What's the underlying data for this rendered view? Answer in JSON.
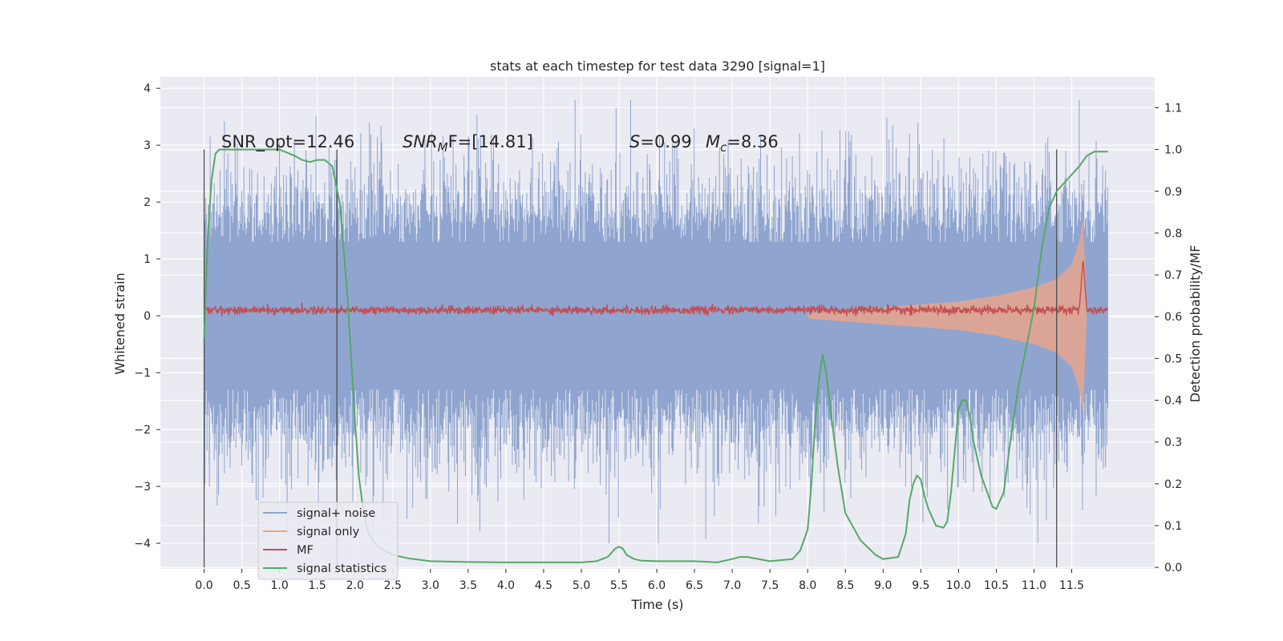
{
  "chart_data": {
    "type": "line",
    "title": "stats at each timestep for test data 3290 [signal=1]",
    "xlabel": "Time (s)",
    "ylabel": "Whitened strain",
    "y2label": "Detection probability/MF",
    "xlim": [
      -0.58,
      12.6
    ],
    "ylim": [
      -4.45,
      4.2
    ],
    "y2lim": [
      -0.0035,
      1.1737
    ],
    "x_ticks": [
      "0.0",
      "0.5",
      "1.0",
      "1.5",
      "2.0",
      "2.5",
      "3.0",
      "3.5",
      "4.0",
      "4.5",
      "5.0",
      "5.5",
      "6.0",
      "6.5",
      "7.0",
      "7.5",
      "8.0",
      "8.5",
      "9.0",
      "9.5",
      "10.0",
      "10.5",
      "11.0",
      "11.5"
    ],
    "y_ticks": [
      "4",
      "3",
      "2",
      "1",
      "0",
      "−1",
      "−2",
      "−3",
      "−4"
    ],
    "y2_ticks": [
      "1.1",
      "1.0",
      "0.9",
      "0.8",
      "0.7",
      "0.6",
      "0.5",
      "0.4",
      "0.3",
      "0.2",
      "0.1",
      "0.0"
    ],
    "grid": true,
    "legend_position": "bottom-left",
    "annotations": {
      "snr_opt": "SNR_opt=12.46",
      "snr_mf_sym": "SNR",
      "snr_mf_sub": "M",
      "snr_mf_rest": "F=[14.81]",
      "s_sym": "S",
      "s_val": "=0.99",
      "mc_sym": "M",
      "mc_sub": "c",
      "mc_val": "=8.36"
    },
    "vertical_markers": [
      0.0,
      1.76,
      11.3
    ],
    "noise": {
      "t_start": 0.0,
      "t_end": 11.98,
      "typical_amplitude": 2.3,
      "max": 3.8,
      "min": -4.0
    },
    "signal_envelope": [
      {
        "t": 8.0,
        "amp": 0.05
      },
      {
        "t": 9.0,
        "amp": 0.15
      },
      {
        "t": 10.0,
        "amp": 0.25
      },
      {
        "t": 10.5,
        "amp": 0.35
      },
      {
        "t": 11.0,
        "amp": 0.5
      },
      {
        "t": 11.3,
        "amp": 0.65
      },
      {
        "t": 11.5,
        "amp": 0.9
      },
      {
        "t": 11.6,
        "amp": 1.3
      },
      {
        "t": 11.65,
        "amp": 1.7
      },
      {
        "t": 11.7,
        "amp": 0.05
      }
    ],
    "mf": {
      "t_start": 0.0,
      "t_end": 11.98,
      "baseline": 0.1,
      "jitter": 0.08,
      "peak_t": 11.65,
      "peak_value": 1.0
    },
    "series": [
      {
        "name": "signal+ noise",
        "color": "#8fa5cf"
      },
      {
        "name": "signal only",
        "color": "#e8a58c"
      },
      {
        "name": "MF",
        "color": "#c44e52"
      },
      {
        "name": "signal statistics",
        "color": "#55a868",
        "x": [
          0.0,
          0.05,
          0.1,
          0.15,
          0.2,
          0.3,
          0.5,
          0.7,
          1.0,
          1.2,
          1.3,
          1.4,
          1.5,
          1.6,
          1.7,
          1.8,
          1.9,
          2.0,
          2.05,
          2.1,
          2.15,
          2.2,
          2.3,
          2.4,
          2.5,
          2.7,
          3.0,
          3.5,
          4.0,
          4.5,
          5.0,
          5.2,
          5.35,
          5.45,
          5.5,
          5.55,
          5.6,
          5.7,
          5.8,
          6.0,
          6.5,
          6.8,
          7.0,
          7.1,
          7.2,
          7.5,
          7.8,
          7.9,
          8.0,
          8.05,
          8.1,
          8.15,
          8.2,
          8.25,
          8.3,
          8.4,
          8.5,
          8.7,
          8.9,
          9.0,
          9.2,
          9.3,
          9.35,
          9.4,
          9.45,
          9.5,
          9.55,
          9.6,
          9.7,
          9.8,
          9.85,
          9.9,
          10.0,
          10.05,
          10.1,
          10.15,
          10.2,
          10.3,
          10.4,
          10.45,
          10.5,
          10.6,
          10.7,
          10.8,
          11.0,
          11.1,
          11.2,
          11.3,
          11.4,
          11.5,
          11.6,
          11.7,
          11.8,
          11.9,
          11.98
        ],
        "y": [
          0.55,
          0.8,
          0.93,
          0.99,
          1.0,
          1.0,
          1.0,
          1.0,
          1.0,
          0.985,
          0.975,
          0.97,
          0.975,
          0.975,
          0.96,
          0.87,
          0.65,
          0.35,
          0.22,
          0.15,
          0.1,
          0.075,
          0.05,
          0.04,
          0.03,
          0.022,
          0.015,
          0.013,
          0.012,
          0.012,
          0.012,
          0.015,
          0.025,
          0.045,
          0.05,
          0.045,
          0.03,
          0.02,
          0.016,
          0.015,
          0.015,
          0.012,
          0.02,
          0.025,
          0.025,
          0.015,
          0.02,
          0.04,
          0.09,
          0.2,
          0.35,
          0.45,
          0.51,
          0.46,
          0.38,
          0.24,
          0.13,
          0.065,
          0.03,
          0.02,
          0.025,
          0.08,
          0.16,
          0.2,
          0.22,
          0.21,
          0.17,
          0.14,
          0.1,
          0.095,
          0.11,
          0.18,
          0.38,
          0.4,
          0.4,
          0.36,
          0.3,
          0.22,
          0.17,
          0.145,
          0.14,
          0.18,
          0.32,
          0.44,
          0.62,
          0.76,
          0.86,
          0.9,
          0.92,
          0.94,
          0.96,
          0.985,
          0.995,
          0.995,
          0.995
        ]
      }
    ]
  }
}
